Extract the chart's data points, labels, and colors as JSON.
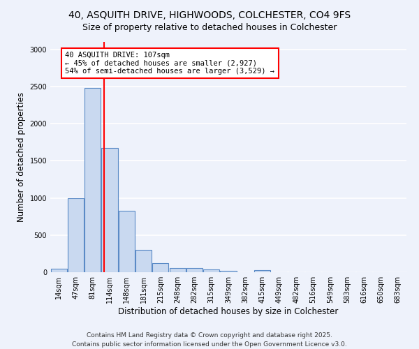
{
  "title_line1": "40, ASQUITH DRIVE, HIGHWOODS, COLCHESTER, CO4 9FS",
  "title_line2": "Size of property relative to detached houses in Colchester",
  "xlabel": "Distribution of detached houses by size in Colchester",
  "ylabel": "Number of detached properties",
  "bar_values": [
    50,
    1000,
    2480,
    1670,
    830,
    300,
    120,
    60,
    55,
    40,
    20,
    0,
    25,
    0,
    0,
    0,
    0,
    0,
    0,
    0,
    0
  ],
  "bin_labels": [
    "14sqm",
    "47sqm",
    "81sqm",
    "114sqm",
    "148sqm",
    "181sqm",
    "215sqm",
    "248sqm",
    "282sqm",
    "315sqm",
    "349sqm",
    "382sqm",
    "415sqm",
    "449sqm",
    "482sqm",
    "516sqm",
    "549sqm",
    "583sqm",
    "616sqm",
    "650sqm",
    "683sqm"
  ],
  "bar_color": "#c9d9f0",
  "bar_edge_color": "#5a8ac6",
  "background_color": "#eef2fb",
  "grid_color": "#ffffff",
  "annotation_text": "40 ASQUITH DRIVE: 107sqm\n← 45% of detached houses are smaller (2,927)\n54% of semi-detached houses are larger (3,529) →",
  "vline_x_index": 2.67,
  "ylim": [
    0,
    3100
  ],
  "yticks": [
    0,
    500,
    1000,
    1500,
    2000,
    2500,
    3000
  ],
  "footer_line1": "Contains HM Land Registry data © Crown copyright and database right 2025.",
  "footer_line2": "Contains public sector information licensed under the Open Government Licence v3.0.",
  "title_fontsize": 10,
  "subtitle_fontsize": 9,
  "axis_label_fontsize": 8.5,
  "tick_fontsize": 7,
  "annotation_fontsize": 7.5,
  "footer_fontsize": 6.5
}
